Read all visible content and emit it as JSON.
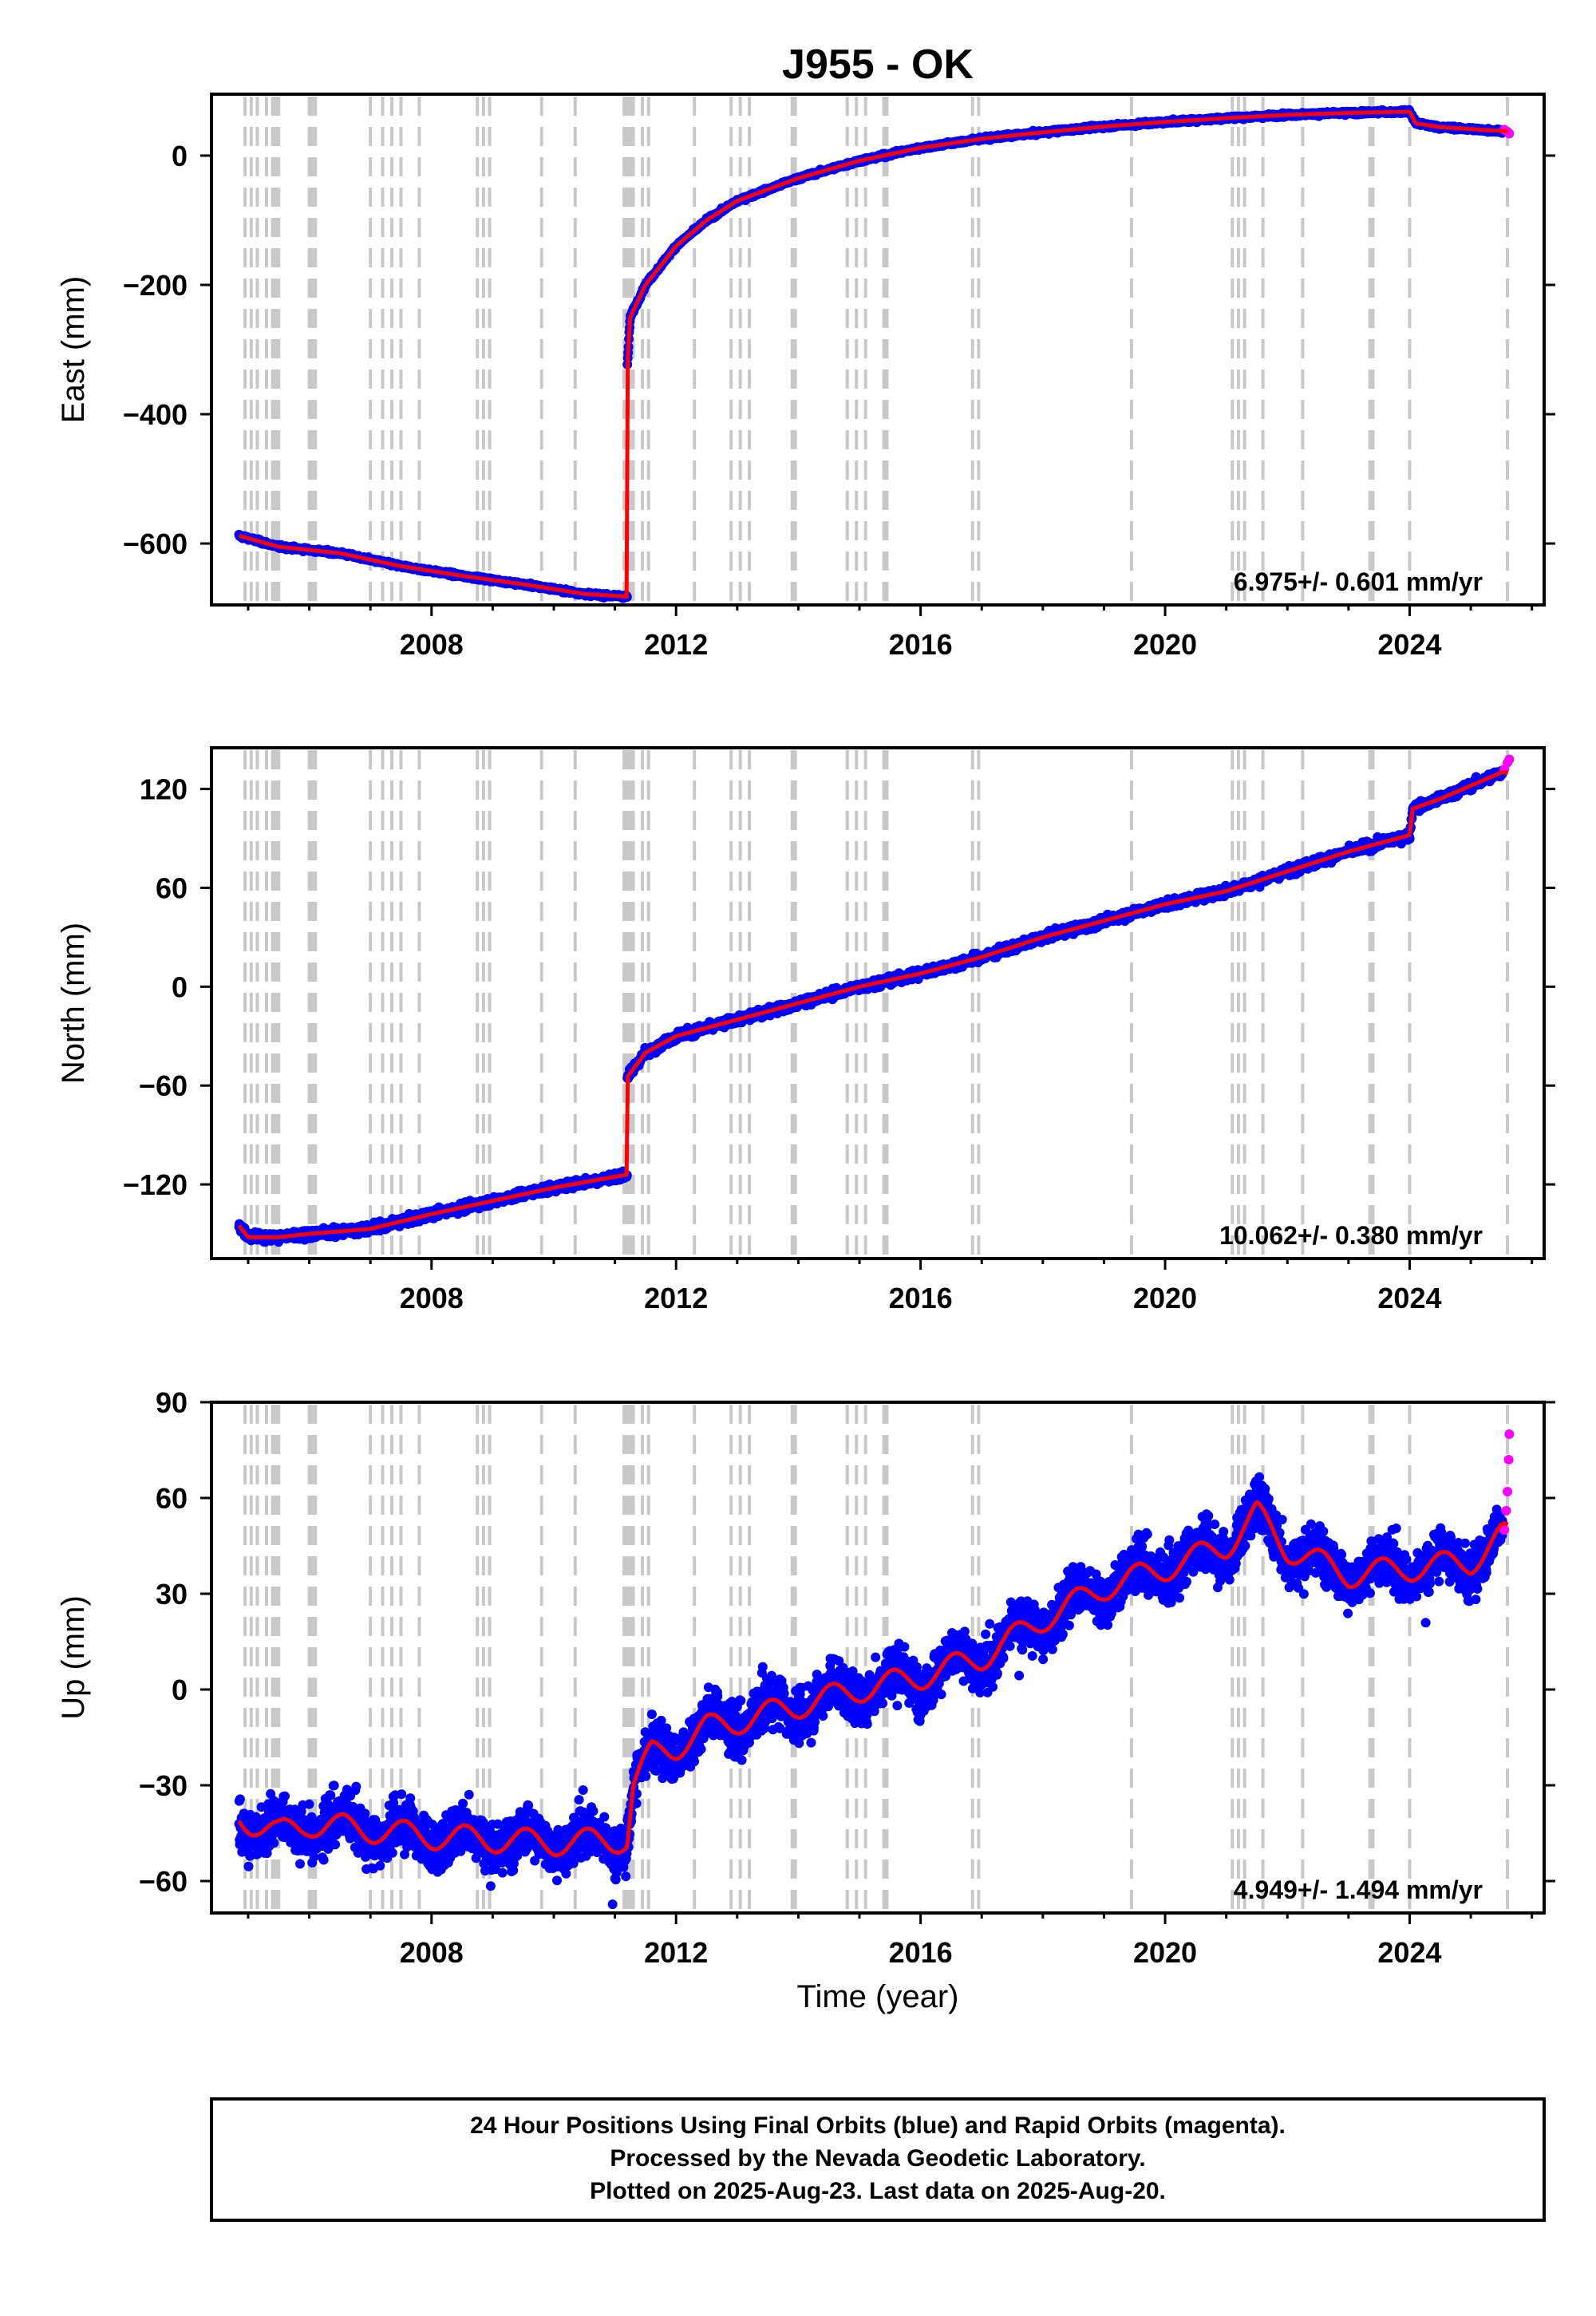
{
  "title": "J955 - OK",
  "colors": {
    "final": "#0000ff",
    "rapid": "#ff00ff",
    "model": "#ff0000",
    "event_lines": "#c8c8c8"
  },
  "xlabel": "Time (year)",
  "footer": {
    "line1": "24 Hour Positions Using Final Orbits (blue) and Rapid Orbits (magenta).",
    "line2": "Processed by the Nevada Geodetic Laboratory.",
    "line3": "Plotted on 2025-Aug-23. Last data on 2025-Aug-20."
  },
  "chart_data": [
    {
      "type": "scatter",
      "component": "east",
      "title": "J955 - OK",
      "xlabel": "",
      "ylabel": "East (mm)",
      "xlim": [
        2004.4,
        2026.2
      ],
      "ylim": [
        -695,
        95
      ],
      "xticks": [
        2008,
        2012,
        2016,
        2020,
        2024
      ],
      "yticks": [
        0,
        -200,
        -400,
        -600
      ],
      "rate_text": "6.975+/- 0.601 mm/yr",
      "grid": false,
      "noise_mm": 2.2,
      "trend": [
        [
          2004.85,
          -588
        ],
        [
          2005.5,
          -605
        ],
        [
          2006.5,
          -615
        ],
        [
          2007.5,
          -635
        ],
        [
          2008.5,
          -650
        ],
        [
          2009.5,
          -663
        ],
        [
          2010.5,
          -678
        ],
        [
          2011.2,
          -682
        ],
        [
          2011.2,
          -330
        ],
        [
          2011.25,
          -250
        ],
        [
          2011.5,
          -200
        ],
        [
          2012,
          -140
        ],
        [
          2012.5,
          -100
        ],
        [
          2013,
          -70
        ],
        [
          2014,
          -35
        ],
        [
          2015,
          -8
        ],
        [
          2016,
          12
        ],
        [
          2017,
          26
        ],
        [
          2018,
          36
        ],
        [
          2019,
          45
        ],
        [
          2020,
          52
        ],
        [
          2021,
          58
        ],
        [
          2022,
          63
        ],
        [
          2023,
          66
        ],
        [
          2024,
          68
        ],
        [
          2024.1,
          50
        ],
        [
          2024.5,
          44
        ],
        [
          2025.5,
          38
        ]
      ],
      "rapid_points": [
        [
          2025.55,
          40
        ],
        [
          2025.6,
          37
        ],
        [
          2025.63,
          34
        ]
      ]
    },
    {
      "type": "scatter",
      "component": "north",
      "xlabel": "",
      "ylabel": "North (mm)",
      "xlim": [
        2004.4,
        2026.2
      ],
      "ylim": [
        -165,
        145
      ],
      "xticks": [
        2008,
        2012,
        2016,
        2020,
        2024
      ],
      "yticks": [
        120,
        60,
        0,
        -60,
        -120
      ],
      "rate_text": "10.062+/- 0.380 mm/yr",
      "grid": false,
      "noise_mm": 2.2,
      "trend": [
        [
          2004.85,
          -145
        ],
        [
          2005.0,
          -152
        ],
        [
          2005.5,
          -152
        ],
        [
          2006,
          -150
        ],
        [
          2007,
          -147
        ],
        [
          2008,
          -138
        ],
        [
          2009,
          -130
        ],
        [
          2010,
          -122
        ],
        [
          2011.2,
          -114
        ],
        [
          2011.2,
          -55
        ],
        [
          2011.5,
          -40
        ],
        [
          2012,
          -30
        ],
        [
          2013,
          -20
        ],
        [
          2014,
          -10
        ],
        [
          2015,
          0
        ],
        [
          2016,
          8
        ],
        [
          2017,
          18
        ],
        [
          2018,
          30
        ],
        [
          2019,
          40
        ],
        [
          2020,
          50
        ],
        [
          2021,
          58
        ],
        [
          2022,
          70
        ],
        [
          2023,
          82
        ],
        [
          2024,
          92
        ],
        [
          2024.05,
          108
        ],
        [
          2024.5,
          114
        ],
        [
          2025,
          122
        ],
        [
          2025.5,
          130
        ]
      ],
      "rapid_points": [
        [
          2025.55,
          132
        ],
        [
          2025.6,
          136
        ],
        [
          2025.63,
          138
        ]
      ]
    },
    {
      "type": "scatter",
      "component": "up",
      "xlabel": "Time (year)",
      "ylabel": "Up (mm)",
      "xlim": [
        2004.4,
        2026.2
      ],
      "ylim": [
        -70,
        90
      ],
      "xticks": [
        2008,
        2012,
        2016,
        2020,
        2024
      ],
      "yticks": [
        90,
        60,
        30,
        0,
        -30,
        -60
      ],
      "rate_text": "4.949+/- 1.494 mm/yr",
      "grid": false,
      "noise_mm": 6.5,
      "trend": [
        [
          2004.85,
          -40
        ],
        [
          2005.5,
          -45
        ],
        [
          2006,
          -42
        ],
        [
          2007,
          -44
        ],
        [
          2008,
          -46
        ],
        [
          2009,
          -47
        ],
        [
          2010,
          -48
        ],
        [
          2011.2,
          -47
        ],
        [
          2011.3,
          -30
        ],
        [
          2011.6,
          -20
        ],
        [
          2012,
          -18
        ],
        [
          2012.5,
          -12
        ],
        [
          2013,
          -10
        ],
        [
          2014,
          -5
        ],
        [
          2015,
          0
        ],
        [
          2016,
          4
        ],
        [
          2017,
          10
        ],
        [
          2018,
          22
        ],
        [
          2019,
          32
        ],
        [
          2020,
          38
        ],
        [
          2021,
          45
        ],
        [
          2021.5,
          55
        ],
        [
          2022,
          44
        ],
        [
          2022.5,
          40
        ],
        [
          2023,
          36
        ],
        [
          2024,
          38
        ],
        [
          2025,
          40
        ],
        [
          2025.5,
          48
        ]
      ],
      "seasonal_mm": 4,
      "rapid_points": [
        [
          2025.55,
          50
        ],
        [
          2025.58,
          56
        ],
        [
          2025.6,
          62
        ],
        [
          2025.62,
          72
        ],
        [
          2025.63,
          80
        ]
      ]
    }
  ],
  "event_lines": [
    2004.95,
    2005.05,
    2005.15,
    2005.3,
    2005.4,
    2005.45,
    2005.5,
    2006.0,
    2006.05,
    2006.1,
    2007.0,
    2007.2,
    2007.35,
    2007.5,
    2007.8,
    2008.75,
    2008.85,
    2008.95,
    2009.8,
    2010.35,
    2011.15,
    2011.2,
    2011.25,
    2011.3,
    2011.45,
    2011.55,
    2012.3,
    2012.9,
    2013.05,
    2013.2,
    2013.9,
    2013.95,
    2014.8,
    2014.95,
    2015.1,
    2015.4,
    2015.45,
    2016.85,
    2016.95,
    2019.45,
    2021.1,
    2021.2,
    2021.3,
    2021.6,
    2022.25,
    2023.35,
    2023.4,
    2024.0,
    2025.6
  ]
}
